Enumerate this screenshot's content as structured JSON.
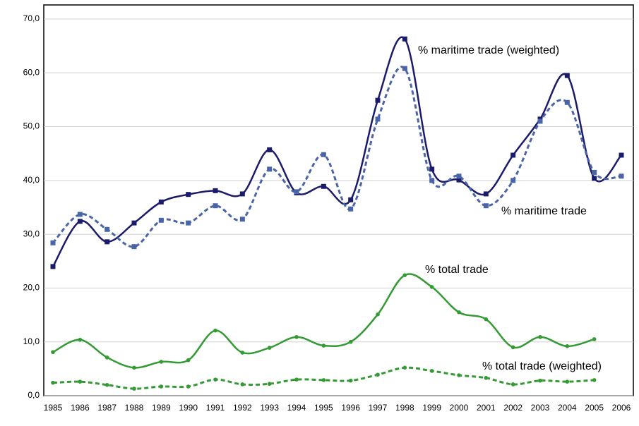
{
  "chart_data": {
    "type": "line",
    "categories": [
      "1985",
      "1986",
      "1987",
      "1988",
      "1989",
      "1990",
      "1991",
      "1992",
      "1993",
      "1994",
      "1995",
      "1996",
      "1997",
      "1998",
      "1999",
      "2000",
      "2001",
      "2002",
      "2003",
      "2004",
      "2005",
      "2006"
    ],
    "series": [
      {
        "name": "% maritime trade (weighted)",
        "color": "#1b1b6b",
        "dash": false,
        "marker": "square",
        "values": [
          24.0,
          32.4,
          28.6,
          32.1,
          36.0,
          37.4,
          38.1,
          37.5,
          45.7,
          37.7,
          38.9,
          36.4,
          54.9,
          66.3,
          42.1,
          40.1,
          37.5,
          44.7,
          51.4,
          59.5,
          40.4,
          44.7
        ]
      },
      {
        "name": "% maritime trade",
        "color": "#4a64a8",
        "dash": true,
        "marker": "square",
        "values": [
          28.4,
          33.7,
          30.9,
          27.7,
          32.6,
          32.1,
          35.3,
          32.8,
          42.1,
          37.9,
          44.8,
          34.7,
          51.4,
          60.8,
          40.0,
          40.8,
          35.3,
          40.0,
          51.0,
          54.5,
          41.5,
          40.8
        ]
      },
      {
        "name": "% total trade",
        "color": "#349a34",
        "dash": false,
        "marker": "circle",
        "values": [
          8.1,
          10.4,
          7.1,
          5.2,
          6.3,
          6.6,
          12.1,
          8.0,
          8.9,
          10.9,
          9.3,
          10.0,
          15.1,
          22.4,
          20.2,
          15.5,
          14.2,
          9.0,
          10.9,
          9.2,
          10.5,
          null
        ]
      },
      {
        "name": "% total trade (weighted)",
        "color": "#349a34",
        "dash": true,
        "marker": "circle",
        "values": [
          2.4,
          2.6,
          2.0,
          1.3,
          1.7,
          1.7,
          3.0,
          2.1,
          2.2,
          3.0,
          2.9,
          2.8,
          3.9,
          5.2,
          4.6,
          3.8,
          3.3,
          2.1,
          2.8,
          2.6,
          2.9,
          null
        ]
      }
    ],
    "ylim": [
      0,
      70
    ],
    "yticks": [
      {
        "value": 0,
        "label": "0,0"
      },
      {
        "value": 10,
        "label": "10,0"
      },
      {
        "value": 20,
        "label": "20,0"
      },
      {
        "value": 30,
        "label": "30,0"
      },
      {
        "value": 40,
        "label": "40,0"
      },
      {
        "value": 50,
        "label": "50,0"
      },
      {
        "value": 60,
        "label": "60,0"
      },
      {
        "value": 70,
        "label": "70,0"
      }
    ],
    "grid": true
  }
}
